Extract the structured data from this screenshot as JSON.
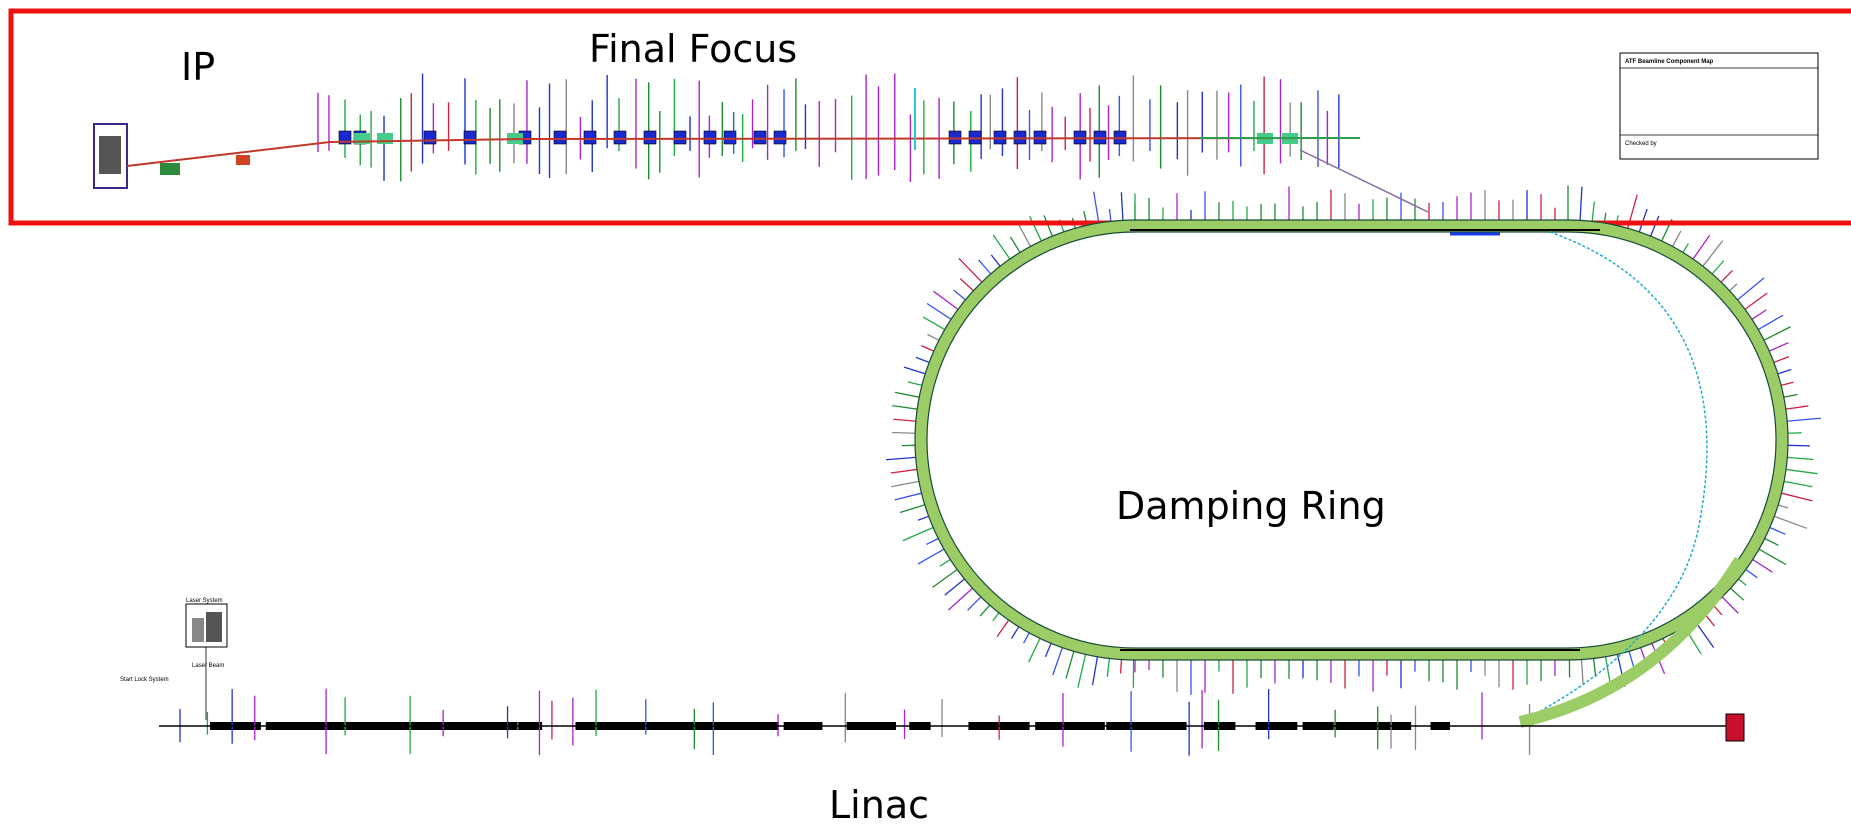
{
  "labels": {
    "ip": "IP",
    "final_focus": "Final Focus",
    "damping_ring": "Damping Ring",
    "linac": "Linac"
  },
  "legend": {
    "title": "ATF Beamline Component Map",
    "checked": "Checked by"
  },
  "linac_labels": {
    "laser_system": "Laser System",
    "laser_beam": "Laser Beam",
    "start_lock_system": "Start Lock System"
  }
}
